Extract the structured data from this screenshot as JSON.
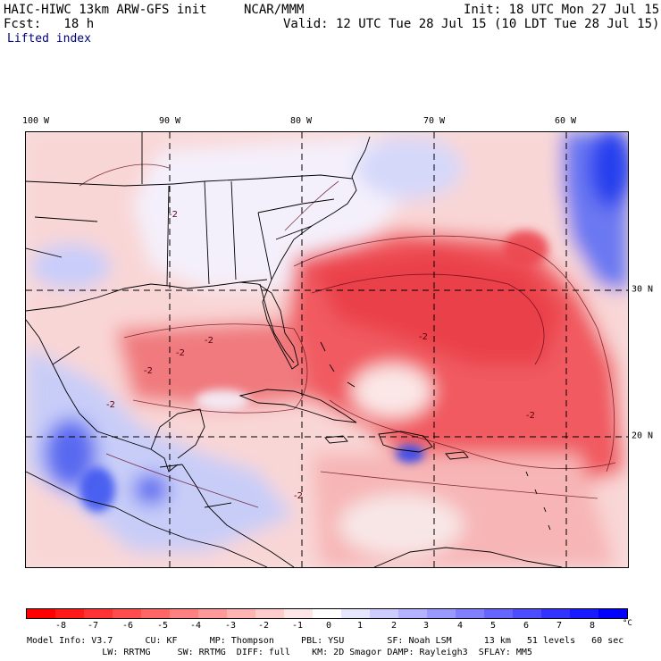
{
  "header": {
    "model": "HAIC-HIWC 13km ARW-GFS init",
    "org": "NCAR/MMM",
    "init": "Init: 18 UTC Mon 27 Jul 15",
    "fcst": "Fcst:   18 h",
    "valid": "Valid: 12 UTC Tue 28 Jul 15 (10 LDT Tue 28 Jul 15)",
    "field": "Lifted index"
  },
  "map": {
    "lon_labels": [
      "100 W",
      "90 W",
      "80 W",
      "70 W",
      "60 W"
    ],
    "lat_labels": [
      "30 N",
      "20 N"
    ],
    "contour_labels": [
      "-2",
      "-2",
      "-2",
      "-2",
      "-2",
      "-2",
      "-2",
      "-2"
    ],
    "colors": {
      "neg_strong": "#ff3b3b",
      "neg_mid": "#ff8080",
      "neg_light": "#ffc4c4",
      "neutral": "#ffffff",
      "pos_light": "#d0d0ff",
      "pos_mid": "#8a8aff",
      "pos_strong": "#2020ff",
      "land_outline": "#000000"
    }
  },
  "colorbar": {
    "labels": [
      "-8",
      "-7",
      "-6",
      "-5",
      "-4",
      "-3",
      "-2",
      "-1",
      "0",
      "1",
      "2",
      "3",
      "4",
      "5",
      "6",
      "7",
      "8"
    ],
    "unit": "°C",
    "colors": [
      "#ff0000",
      "#ff1a1a",
      "#ff3333",
      "#ff4d4d",
      "#ff6666",
      "#ff8080",
      "#ff9999",
      "#ffb3b3",
      "#ffcccc",
      "#ffe6e6",
      "#ffffff",
      "#e6e6ff",
      "#ccccff",
      "#b3b3ff",
      "#9999ff",
      "#8080ff",
      "#6666ff",
      "#4d4dff",
      "#3333ff",
      "#1a1aff",
      "#0000ff"
    ]
  },
  "footer": {
    "line1": "Model Info: V3.7      CU: KF      MP: Thompson     PBL: YSU        SF: Noah LSM      13 km   51 levels   60 sec",
    "line2": "              LW: RRTMG     SW: RRTMG  DIFF: full    KM: 2D Smagor DAMP: Rayleigh3  SFLAY: MM5"
  }
}
